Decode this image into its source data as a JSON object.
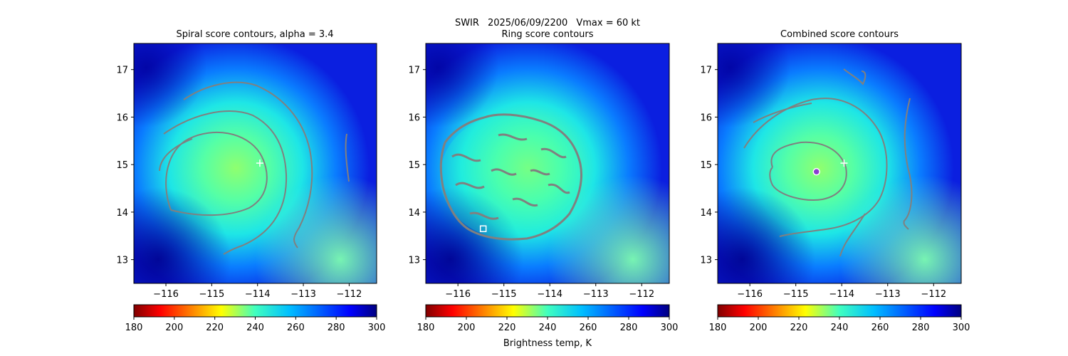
{
  "suptitle": {
    "product": "SWIR",
    "datetime": "2025/06/09/2200",
    "vmax": "Vmax = 60 kt"
  },
  "colors": {
    "contour": "#808080",
    "marker": "#ffffff",
    "center_fill": "#8a3fd1"
  },
  "chart_data": [
    {
      "type": "heatmap",
      "title": "Spiral score contours, alpha =  3.4",
      "x_ticks": [
        -116,
        -115,
        -114,
        -113,
        -112
      ],
      "y_ticks": [
        13,
        14,
        15,
        16,
        17
      ],
      "xlim": [
        -116.7,
        -111.4
      ],
      "ylim": [
        12.5,
        17.55
      ],
      "colorbar": {
        "ticks": [
          180,
          200,
          220,
          240,
          260,
          280,
          300
        ],
        "label": "",
        "cmap": "jet_r"
      },
      "markers": [
        {
          "kind": "plus",
          "lon": -113.95,
          "lat": 15.03
        }
      ]
    },
    {
      "type": "heatmap",
      "title": "Ring score contours",
      "x_ticks": [
        -116,
        -115,
        -114,
        -113,
        -112
      ],
      "y_ticks": [
        13,
        14,
        15,
        16,
        17
      ],
      "xlim": [
        -116.7,
        -111.4
      ],
      "ylim": [
        12.5,
        17.55
      ],
      "colorbar": {
        "ticks": [
          180,
          200,
          220,
          240,
          260,
          280,
          300
        ],
        "label": "Brightness temp, K",
        "cmap": "jet_r"
      },
      "markers": [
        {
          "kind": "square",
          "lon": -115.45,
          "lat": 13.65
        }
      ]
    },
    {
      "type": "heatmap",
      "title": "Combined score contours",
      "x_ticks": [
        -116,
        -115,
        -114,
        -113,
        -112
      ],
      "y_ticks": [
        13,
        14,
        15,
        16,
        17
      ],
      "xlim": [
        -116.7,
        -111.4
      ],
      "ylim": [
        12.5,
        17.55
      ],
      "colorbar": {
        "ticks": [
          180,
          200,
          220,
          240,
          260,
          280,
          300
        ],
        "label": "",
        "cmap": "jet_r"
      },
      "markers": [
        {
          "kind": "plus",
          "lon": -113.95,
          "lat": 15.03
        },
        {
          "kind": "circle",
          "lon": -114.55,
          "lat": 14.85
        }
      ]
    }
  ]
}
